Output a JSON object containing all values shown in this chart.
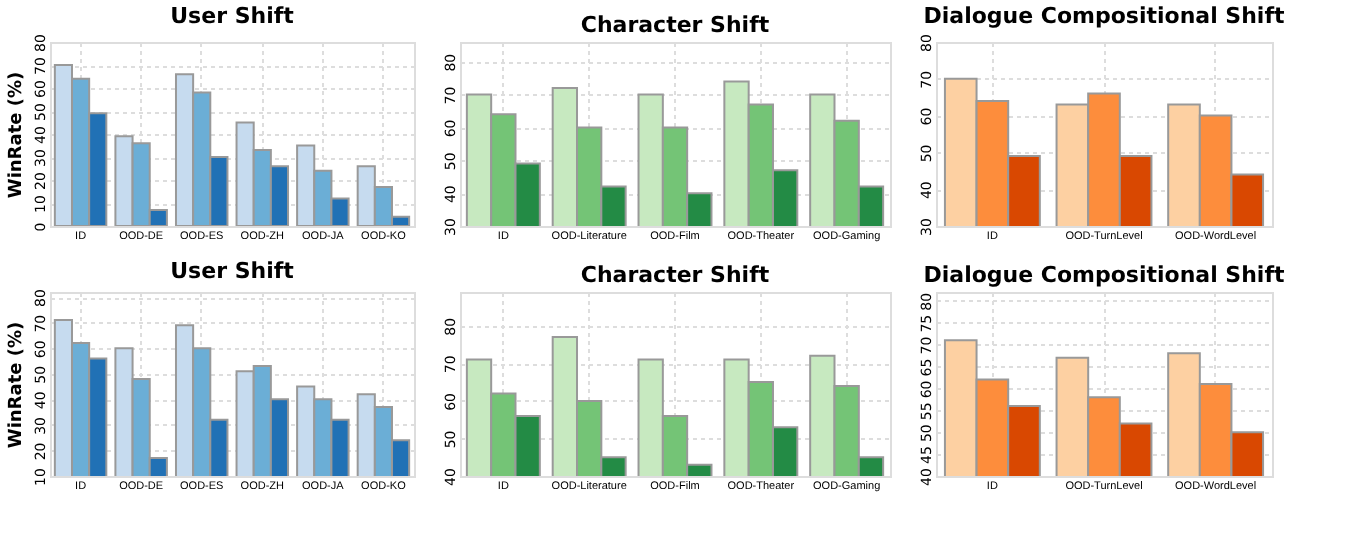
{
  "chart_data": [
    {
      "type": "bar",
      "title": "User Shift",
      "ylabel": "WinRate (%)",
      "categories": [
        "ID",
        "OOD-DE",
        "OOD-ES",
        "OOD-ZH",
        "OOD-JA",
        "OOD-KO"
      ],
      "ylim": [
        0,
        80
      ],
      "yticks": [
        0,
        10,
        20,
        30,
        40,
        50,
        60,
        70,
        80
      ],
      "grid": true,
      "series": [
        {
          "color": "#c6dbef",
          "values": [
            70,
            39,
            66,
            45,
            35,
            26
          ]
        },
        {
          "color": "#6baed6",
          "values": [
            64,
            36,
            58,
            33,
            24,
            17
          ]
        },
        {
          "color": "#2171b5",
          "values": [
            49,
            7,
            30,
            26,
            12,
            4
          ]
        }
      ]
    },
    {
      "type": "bar",
      "title": "Character Shift",
      "categories": [
        "ID",
        "OOD-Literature",
        "OOD-Film",
        "OOD-Theater",
        "OOD-Gaming"
      ],
      "ylim": [
        30,
        86
      ],
      "yticks": [
        30,
        40,
        50,
        60,
        70,
        80
      ],
      "grid": true,
      "series": [
        {
          "color": "#c7e9c0",
          "values": [
            70,
            72,
            70,
            74,
            70
          ]
        },
        {
          "color": "#74c476",
          "values": [
            64,
            60,
            60,
            67,
            62
          ]
        },
        {
          "color": "#238b45",
          "values": [
            49,
            42,
            40,
            47,
            42
          ]
        }
      ]
    },
    {
      "type": "bar",
      "title": "Dialogue Compositional Shift",
      "categories": [
        "ID",
        "OOD-TurnLevel",
        "OOD-WordLevel"
      ],
      "ylim": [
        30,
        80
      ],
      "yticks": [
        30,
        40,
        50,
        60,
        70,
        80
      ],
      "grid": true,
      "series": [
        {
          "color": "#fdd0a2",
          "values": [
            70,
            63,
            63
          ]
        },
        {
          "color": "#fd8d3c",
          "values": [
            64,
            66,
            60
          ]
        },
        {
          "color": "#d94801",
          "values": [
            49,
            49,
            44
          ]
        }
      ]
    },
    {
      "type": "bar",
      "title": "User Shift",
      "ylabel": "WinRate (%)",
      "categories": [
        "ID",
        "OOD-DE",
        "OOD-ES",
        "OOD-ZH",
        "OOD-JA",
        "OOD-KO"
      ],
      "ylim": [
        10,
        82
      ],
      "yticks": [
        10,
        20,
        30,
        40,
        50,
        60,
        70,
        80
      ],
      "grid": true,
      "series": [
        {
          "color": "#c6dbef",
          "values": [
            71,
            60,
            69,
            51,
            45,
            42
          ]
        },
        {
          "color": "#6baed6",
          "values": [
            62,
            48,
            60,
            53,
            40,
            37
          ]
        },
        {
          "color": "#2171b5",
          "values": [
            56,
            17,
            32,
            40,
            32,
            24
          ]
        }
      ]
    },
    {
      "type": "bar",
      "title": "Character Shift",
      "categories": [
        "ID",
        "OOD-Literature",
        "OOD-Film",
        "OOD-Theater",
        "OOD-Gaming"
      ],
      "ylim": [
        40,
        89
      ],
      "yticks": [
        40,
        50,
        60,
        70,
        80
      ],
      "grid": true,
      "series": [
        {
          "color": "#c7e9c0",
          "values": [
            71,
            77,
            71,
            71,
            72
          ]
        },
        {
          "color": "#74c476",
          "values": [
            62,
            60,
            56,
            65,
            64
          ]
        },
        {
          "color": "#238b45",
          "values": [
            56,
            45,
            43,
            53,
            45
          ]
        }
      ]
    },
    {
      "type": "bar",
      "title": "Dialogue Compositional Shift",
      "categories": [
        "ID",
        "OOD-TurnLevel",
        "OOD-WordLevel"
      ],
      "ylim": [
        40,
        82
      ],
      "yticks": [
        40,
        45,
        50,
        55,
        60,
        65,
        70,
        75,
        80
      ],
      "grid": true,
      "series": [
        {
          "color": "#fdd0a2",
          "values": [
            71,
            67,
            68
          ]
        },
        {
          "color": "#fd8d3c",
          "values": [
            62,
            58,
            61
          ]
        },
        {
          "color": "#d94801",
          "values": [
            56,
            52,
            50
          ]
        }
      ]
    }
  ]
}
